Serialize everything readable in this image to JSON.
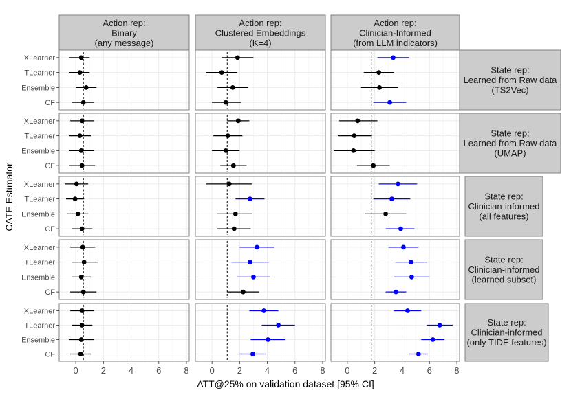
{
  "chart_data": {
    "type": "scatter",
    "subtype": "forest-plot-facet-grid",
    "xlabel": "ATT@25% on validation dataset [95% CI]",
    "ylabel": "CATE Estimator",
    "xlim": [
      -1.2,
      8.2
    ],
    "xticks": [
      0,
      2,
      4,
      6,
      8
    ],
    "estimators": [
      "XLearner",
      "TLearner",
      "Ensemble",
      "CF"
    ],
    "colors": {
      "significant": "#0000ff",
      "not_significant": "#000000",
      "strip_fill": "#cccccc",
      "grid": "#ebebeb",
      "border": "#808080"
    },
    "columns": [
      {
        "label": [
          "Action rep:",
          "Binary",
          "(any message)"
        ]
      },
      {
        "label": [
          "Action rep:",
          "Clustered Embeddings",
          "(K=4)"
        ]
      },
      {
        "label": [
          "Action rep:",
          "Clinician-Informed",
          "(from LLM indicators)"
        ]
      }
    ],
    "rows": [
      {
        "label": [
          "State rep:",
          "Learned from Raw data",
          "(TS2Vec)"
        ]
      },
      {
        "label": [
          "State rep:",
          "Learned from Raw data",
          "(UMAP)"
        ]
      },
      {
        "label": [
          "State rep:",
          "Clinician-informed",
          "(all features)"
        ]
      },
      {
        "label": [
          "State rep:",
          "Clinician-informed",
          "(learned subset)"
        ]
      },
      {
        "label": [
          "State rep:",
          "Clinician-informed",
          "(only TIDE features)"
        ]
      }
    ],
    "panels": [
      [
        {
          "ref": 0.55,
          "points": [
            {
              "estimator": "XLearner",
              "est": 0.4,
              "lo": -0.5,
              "hi": 1.0,
              "sig": false
            },
            {
              "estimator": "TLearner",
              "est": 0.3,
              "lo": -0.5,
              "hi": 1.0,
              "sig": false
            },
            {
              "estimator": "Ensemble",
              "est": 0.75,
              "lo": 0.0,
              "hi": 1.5,
              "sig": false
            },
            {
              "estimator": "CF",
              "est": 0.55,
              "lo": -0.3,
              "hi": 1.3,
              "sig": false
            }
          ]
        },
        {
          "ref": 1.1,
          "points": [
            {
              "estimator": "XLearner",
              "est": 1.85,
              "lo": 0.7,
              "hi": 3.0,
              "sig": false
            },
            {
              "estimator": "TLearner",
              "est": 0.7,
              "lo": -0.4,
              "hi": 1.8,
              "sig": false
            },
            {
              "estimator": "Ensemble",
              "est": 1.5,
              "lo": 0.4,
              "hi": 2.6,
              "sig": false
            },
            {
              "estimator": "CF",
              "est": 1.0,
              "lo": 0.0,
              "hi": 2.1,
              "sig": false
            }
          ]
        },
        {
          "ref": 1.75,
          "points": [
            {
              "estimator": "XLearner",
              "est": 3.35,
              "lo": 2.2,
              "hi": 4.5,
              "sig": true
            },
            {
              "estimator": "TLearner",
              "est": 2.3,
              "lo": 1.2,
              "hi": 3.4,
              "sig": false
            },
            {
              "estimator": "Ensemble",
              "est": 2.35,
              "lo": 1.0,
              "hi": 3.7,
              "sig": false
            },
            {
              "estimator": "CF",
              "est": 3.1,
              "lo": 1.9,
              "hi": 4.3,
              "sig": true
            }
          ]
        }
      ],
      [
        {
          "ref": 0.55,
          "points": [
            {
              "estimator": "XLearner",
              "est": 0.45,
              "lo": -0.4,
              "hi": 1.3,
              "sig": false
            },
            {
              "estimator": "TLearner",
              "est": 0.3,
              "lo": -0.5,
              "hi": 1.1,
              "sig": false
            },
            {
              "estimator": "Ensemble",
              "est": 0.4,
              "lo": -0.5,
              "hi": 1.3,
              "sig": false
            },
            {
              "estimator": "CF",
              "est": 0.45,
              "lo": -0.5,
              "hi": 1.4,
              "sig": false
            }
          ]
        },
        {
          "ref": 1.1,
          "points": [
            {
              "estimator": "XLearner",
              "est": 1.9,
              "lo": 1.1,
              "hi": 2.7,
              "sig": false
            },
            {
              "estimator": "TLearner",
              "est": 1.15,
              "lo": 0.1,
              "hi": 2.2,
              "sig": false
            },
            {
              "estimator": "Ensemble",
              "est": 1.0,
              "lo": 0.0,
              "hi": 2.0,
              "sig": false
            },
            {
              "estimator": "CF",
              "est": 1.55,
              "lo": 0.6,
              "hi": 2.5,
              "sig": false
            }
          ]
        },
        {
          "ref": 1.75,
          "points": [
            {
              "estimator": "XLearner",
              "est": 0.75,
              "lo": -0.6,
              "hi": 2.2,
              "sig": false
            },
            {
              "estimator": "TLearner",
              "est": 0.5,
              "lo": -0.7,
              "hi": 1.8,
              "sig": false
            },
            {
              "estimator": "Ensemble",
              "est": 0.45,
              "lo": -1.0,
              "hi": 2.0,
              "sig": false
            },
            {
              "estimator": "CF",
              "est": 1.9,
              "lo": 0.7,
              "hi": 3.1,
              "sig": false
            }
          ]
        }
      ],
      [
        {
          "ref": 0.55,
          "points": [
            {
              "estimator": "XLearner",
              "est": 0.05,
              "lo": -0.8,
              "hi": 0.9,
              "sig": false
            },
            {
              "estimator": "TLearner",
              "est": -0.05,
              "lo": -0.7,
              "hi": 0.6,
              "sig": false
            },
            {
              "estimator": "Ensemble",
              "est": 0.15,
              "lo": -0.6,
              "hi": 0.9,
              "sig": false
            },
            {
              "estimator": "CF",
              "est": 0.45,
              "lo": -0.3,
              "hi": 1.2,
              "sig": false
            }
          ]
        },
        {
          "ref": 1.1,
          "points": [
            {
              "estimator": "XLearner",
              "est": 1.25,
              "lo": -0.4,
              "hi": 2.9,
              "sig": false
            },
            {
              "estimator": "TLearner",
              "est": 2.75,
              "lo": 1.7,
              "hi": 3.8,
              "sig": true
            },
            {
              "estimator": "Ensemble",
              "est": 1.7,
              "lo": 0.4,
              "hi": 2.9,
              "sig": false
            },
            {
              "estimator": "CF",
              "est": 1.6,
              "lo": 0.4,
              "hi": 2.8,
              "sig": false
            }
          ]
        },
        {
          "ref": 1.75,
          "points": [
            {
              "estimator": "XLearner",
              "est": 3.7,
              "lo": 2.3,
              "hi": 5.1,
              "sig": true
            },
            {
              "estimator": "TLearner",
              "est": 3.25,
              "lo": 1.9,
              "hi": 4.6,
              "sig": true
            },
            {
              "estimator": "Ensemble",
              "est": 2.8,
              "lo": 1.3,
              "hi": 4.3,
              "sig": false
            },
            {
              "estimator": "CF",
              "est": 3.9,
              "lo": 2.8,
              "hi": 4.9,
              "sig": true
            }
          ]
        }
      ],
      [
        {
          "ref": 0.55,
          "points": [
            {
              "estimator": "XLearner",
              "est": 0.5,
              "lo": -0.4,
              "hi": 1.4,
              "sig": false
            },
            {
              "estimator": "TLearner",
              "est": 0.6,
              "lo": -0.3,
              "hi": 1.6,
              "sig": false
            },
            {
              "estimator": "Ensemble",
              "est": 0.4,
              "lo": -0.3,
              "hi": 1.1,
              "sig": false
            },
            {
              "estimator": "CF",
              "est": 0.55,
              "lo": -0.4,
              "hi": 1.5,
              "sig": false
            }
          ]
        },
        {
          "ref": 1.1,
          "points": [
            {
              "estimator": "XLearner",
              "est": 3.25,
              "lo": 2.0,
              "hi": 4.5,
              "sig": true
            },
            {
              "estimator": "TLearner",
              "est": 2.75,
              "lo": 1.4,
              "hi": 4.1,
              "sig": true
            },
            {
              "estimator": "Ensemble",
              "est": 3.0,
              "lo": 1.8,
              "hi": 4.2,
              "sig": true
            },
            {
              "estimator": "CF",
              "est": 2.25,
              "lo": 1.1,
              "hi": 3.4,
              "sig": false
            }
          ]
        },
        {
          "ref": 1.75,
          "points": [
            {
              "estimator": "XLearner",
              "est": 4.1,
              "lo": 3.0,
              "hi": 5.2,
              "sig": true
            },
            {
              "estimator": "TLearner",
              "est": 4.65,
              "lo": 3.5,
              "hi": 5.8,
              "sig": true
            },
            {
              "estimator": "Ensemble",
              "est": 4.7,
              "lo": 3.4,
              "hi": 6.0,
              "sig": true
            },
            {
              "estimator": "CF",
              "est": 3.55,
              "lo": 2.8,
              "hi": 4.3,
              "sig": true
            }
          ]
        }
      ],
      [
        {
          "ref": 0.55,
          "points": [
            {
              "estimator": "XLearner",
              "est": 0.45,
              "lo": -0.4,
              "hi": 1.3,
              "sig": false
            },
            {
              "estimator": "TLearner",
              "est": 0.45,
              "lo": -0.3,
              "hi": 1.2,
              "sig": false
            },
            {
              "estimator": "Ensemble",
              "est": 0.4,
              "lo": -0.5,
              "hi": 1.3,
              "sig": false
            },
            {
              "estimator": "CF",
              "est": 0.35,
              "lo": -0.4,
              "hi": 1.1,
              "sig": false
            }
          ]
        },
        {
          "ref": 1.1,
          "points": [
            {
              "estimator": "XLearner",
              "est": 3.75,
              "lo": 2.7,
              "hi": 4.8,
              "sig": true
            },
            {
              "estimator": "TLearner",
              "est": 4.8,
              "lo": 3.6,
              "hi": 6.0,
              "sig": true
            },
            {
              "estimator": "Ensemble",
              "est": 4.05,
              "lo": 2.8,
              "hi": 5.3,
              "sig": true
            },
            {
              "estimator": "CF",
              "est": 2.95,
              "lo": 2.0,
              "hi": 3.9,
              "sig": true
            }
          ]
        },
        {
          "ref": 1.75,
          "points": [
            {
              "estimator": "XLearner",
              "est": 4.4,
              "lo": 3.4,
              "hi": 5.4,
              "sig": true
            },
            {
              "estimator": "TLearner",
              "est": 6.75,
              "lo": 5.8,
              "hi": 7.7,
              "sig": true
            },
            {
              "estimator": "Ensemble",
              "est": 6.25,
              "lo": 5.4,
              "hi": 7.1,
              "sig": true
            },
            {
              "estimator": "CF",
              "est": 5.2,
              "lo": 4.5,
              "hi": 5.9,
              "sig": true
            }
          ]
        }
      ]
    ]
  }
}
